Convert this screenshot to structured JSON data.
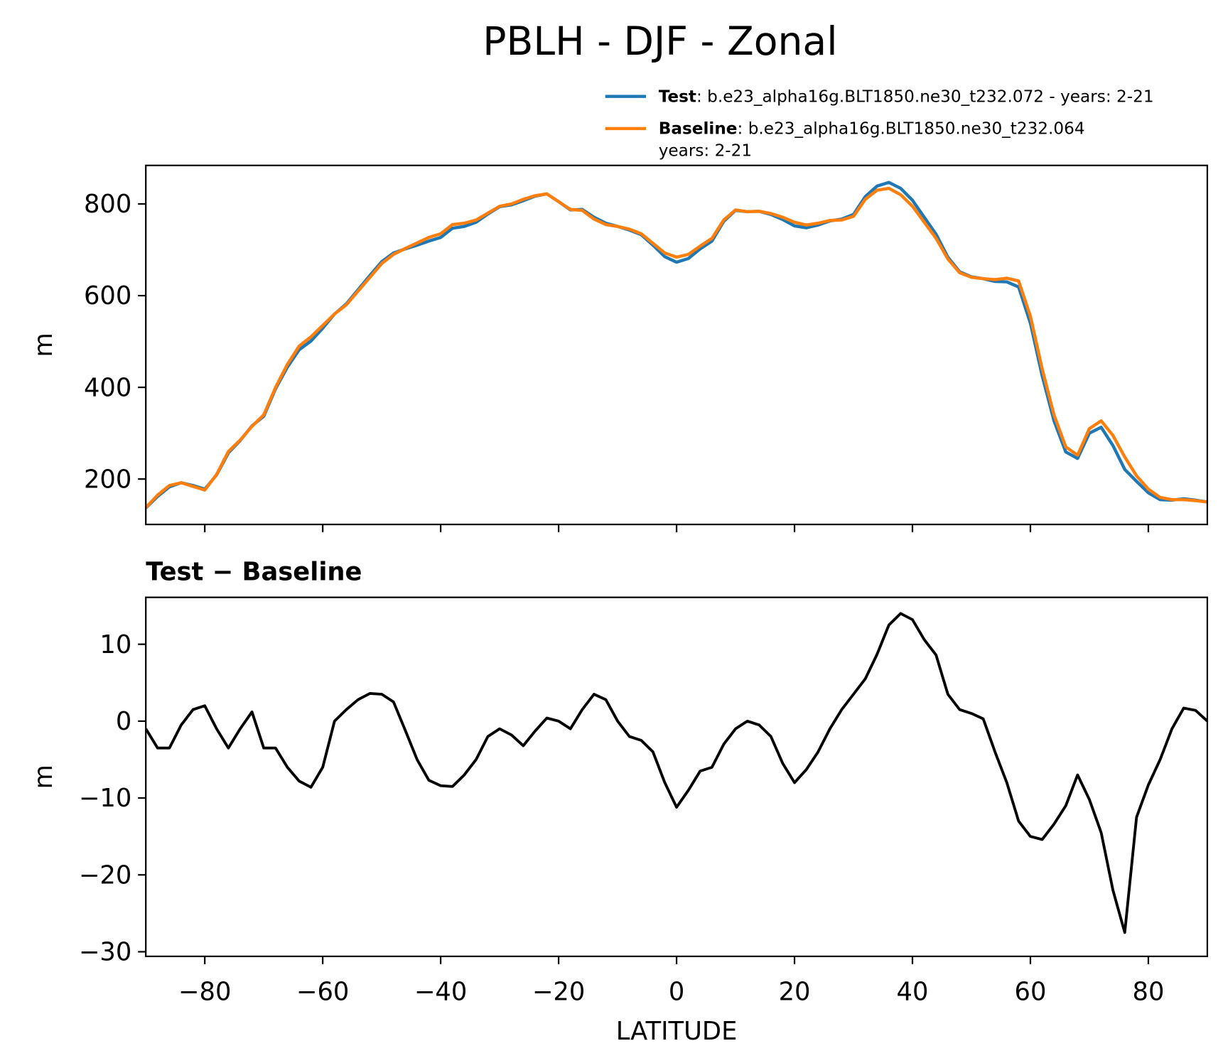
{
  "title": "PBLH - DJF - Zonal",
  "chart_data": [
    {
      "type": "line",
      "ylabel": "m",
      "x": [
        -90,
        -88,
        -86,
        -84,
        -82,
        -80,
        -78,
        -76,
        -74,
        -72,
        -70,
        -68,
        -66,
        -64,
        -62,
        -60,
        -58,
        -56,
        -54,
        -52,
        -50,
        -48,
        -46,
        -44,
        -42,
        -40,
        -38,
        -36,
        -34,
        -32,
        -30,
        -28,
        -26,
        -24,
        -22,
        -20,
        -18,
        -16,
        -14,
        -12,
        -10,
        -8,
        -6,
        -4,
        -2,
        0,
        2,
        4,
        6,
        8,
        10,
        12,
        14,
        16,
        18,
        20,
        22,
        24,
        26,
        28,
        30,
        32,
        34,
        36,
        38,
        40,
        42,
        44,
        46,
        48,
        50,
        52,
        54,
        56,
        58,
        60,
        62,
        64,
        66,
        68,
        70,
        72,
        74,
        76,
        78,
        80,
        82,
        84,
        86,
        88,
        90
      ],
      "series": [
        {
          "name": "Test",
          "description": [
            ": b.e23_alpha16g.BLT1850.ne30_t232.072 - years: 2-21"
          ],
          "color": "#1f77b4",
          "values": [
            137,
            162,
            183,
            192,
            186,
            178,
            209,
            257,
            284,
            316,
            337,
            397,
            444,
            482,
            501,
            529,
            560,
            582,
            613,
            644,
            674,
            693,
            702,
            710,
            719,
            727,
            747,
            751,
            760,
            778,
            794,
            798,
            807,
            817,
            822,
            805,
            787,
            788,
            771,
            758,
            751,
            743,
            733,
            710,
            685,
            673,
            681,
            702,
            719,
            762,
            786,
            783,
            784,
            777,
            766,
            752,
            748,
            754,
            763,
            767,
            777,
            816,
            839,
            847,
            834,
            808,
            771,
            734,
            684,
            652,
            641,
            637,
            631,
            630,
            619,
            540,
            425,
            327,
            259,
            245,
            300,
            313,
            273,
            221,
            195,
            170,
            155,
            154,
            157,
            154,
            150
          ]
        },
        {
          "name": "Baseline",
          "description": [
            ": b.e23_alpha16g.BLT1850.ne30_t232.064",
            "years: 2-21"
          ],
          "color": "#ff7f0e",
          "values": [
            138,
            165,
            186,
            192,
            184,
            176,
            210,
            260,
            285,
            315,
            340,
            400,
            450,
            490,
            510,
            535,
            560,
            580,
            610,
            640,
            670,
            690,
            703,
            715,
            727,
            735,
            755,
            758,
            765,
            780,
            795,
            800,
            810,
            818,
            822,
            805,
            788,
            786,
            767,
            755,
            751,
            745,
            735,
            714,
            693,
            684,
            690,
            708,
            725,
            765,
            787,
            783,
            784,
            779,
            771,
            760,
            754,
            758,
            764,
            765,
            773,
            810,
            830,
            834,
            820,
            795,
            760,
            725,
            680,
            650,
            640,
            637,
            635,
            638,
            632,
            555,
            440,
            340,
            270,
            252,
            310,
            327,
            295,
            248,
            207,
            178,
            160,
            155,
            155,
            153,
            150
          ]
        }
      ],
      "xlim": [
        -90,
        90
      ],
      "xticks": [
        -80,
        -60,
        -40,
        -20,
        0,
        20,
        40,
        60,
        80
      ],
      "ylim": [
        101,
        884
      ],
      "yticks": [
        200,
        400,
        600,
        800
      ]
    },
    {
      "type": "line",
      "title": "Test − Baseline",
      "xlabel": "LATITUDE",
      "ylabel": "m",
      "x": [
        -90,
        -88,
        -86,
        -84,
        -82,
        -80,
        -78,
        -76,
        -74,
        -72,
        -70,
        -68,
        -66,
        -64,
        -62,
        -60,
        -58,
        -56,
        -54,
        -52,
        -50,
        -48,
        -46,
        -44,
        -42,
        -40,
        -38,
        -36,
        -34,
        -32,
        -30,
        -28,
        -26,
        -24,
        -22,
        -20,
        -18,
        -16,
        -14,
        -12,
        -10,
        -8,
        -6,
        -4,
        -2,
        0,
        2,
        4,
        6,
        8,
        10,
        12,
        14,
        16,
        18,
        20,
        22,
        24,
        26,
        28,
        30,
        32,
        34,
        36,
        38,
        40,
        42,
        44,
        46,
        48,
        50,
        52,
        54,
        56,
        58,
        60,
        62,
        64,
        66,
        68,
        70,
        72,
        74,
        76,
        78,
        80,
        82,
        84,
        86,
        88,
        90
      ],
      "color": "#000000",
      "values": [
        -1,
        -3.5,
        -3.5,
        -0.5,
        1.5,
        2,
        -1,
        -3.5,
        -1,
        1.2,
        -3.5,
        -3.5,
        -6,
        -7.8,
        -8.6,
        -6,
        0,
        1.5,
        2.8,
        3.6,
        3.5,
        2.5,
        -1.2,
        -5,
        -7.7,
        -8.4,
        -8.5,
        -7,
        -5,
        -2,
        -1,
        -1.8,
        -3.2,
        -1.3,
        0.4,
        0,
        -1,
        1.5,
        3.5,
        2.8,
        0,
        -2,
        -2.5,
        -4,
        -8,
        -11.2,
        -9,
        -6.5,
        -6,
        -3,
        -1,
        0,
        -0.5,
        -2,
        -5.5,
        -8,
        -6.3,
        -4,
        -1,
        1.5,
        3.5,
        5.5,
        8.7,
        12.5,
        14,
        13.2,
        10.6,
        8.6,
        3.5,
        1.5,
        1,
        0.3,
        -4,
        -8,
        -13,
        -15,
        -15.4,
        -13.4,
        -11,
        -7,
        -10.2,
        -14.5,
        -22,
        -27.5,
        -12.5,
        -8.3,
        -5,
        -1,
        1.7,
        1.4,
        0
      ],
      "xlim": [
        -90,
        90
      ],
      "xticks": [
        {
          "value": -80,
          "label": "−80"
        },
        {
          "value": -60,
          "label": "−60"
        },
        {
          "value": -40,
          "label": "−40"
        },
        {
          "value": -20,
          "label": "−20"
        },
        0,
        20,
        40,
        60,
        80
      ],
      "ylim": [
        -30.6,
        16.1
      ],
      "yticks": [
        10,
        0,
        {
          "value": -10,
          "label": "−10"
        },
        {
          "value": -20,
          "label": "−20"
        },
        {
          "value": -30,
          "label": "−30"
        }
      ]
    }
  ]
}
